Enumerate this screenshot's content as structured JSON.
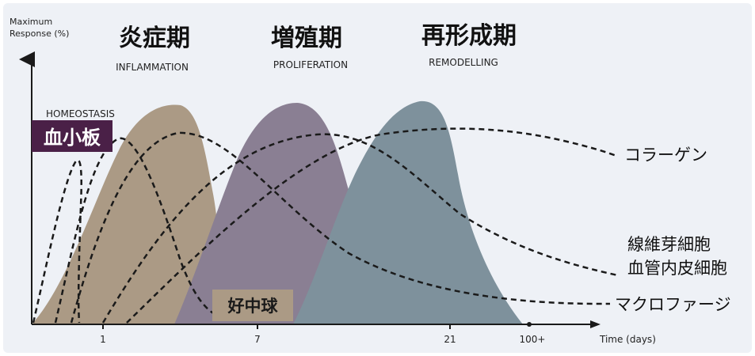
{
  "axis": {
    "y_label_line1": "Maximum",
    "y_label_line2": "Response (%)",
    "x_label": "Time (days)",
    "ticks": [
      "1",
      "7",
      "21",
      "100+"
    ]
  },
  "phases": [
    {
      "ja": "炎症期",
      "en": "INFLAMMATION",
      "color": "#ab9a85"
    },
    {
      "ja": "増殖期",
      "en": "PROLIFERATION",
      "color": "#8a7f93"
    },
    {
      "ja": "再形成期",
      "en": "REMODELLING",
      "color": "#7e919c"
    }
  ],
  "labels": {
    "homeostasis": "HOMEOSTASIS",
    "platelets": "血小板",
    "neutrophils": "好中球",
    "collagen": "コラーゲン",
    "fibroblasts": "線維芽細胞",
    "endothelial": "血管内皮細胞",
    "macrophages": "マクロファージ"
  },
  "colors": {
    "background": "#eef1f6",
    "platelet_badge": "#4a2047",
    "curve": "#1a1a1a"
  }
}
